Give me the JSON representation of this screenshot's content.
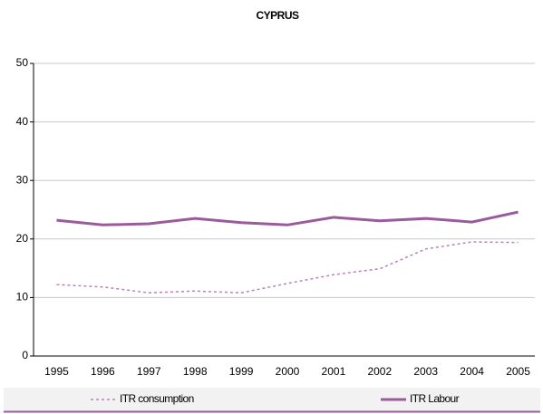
{
  "chart_data": {
    "type": "line",
    "title": "CYPRUS",
    "categories": [
      "1995",
      "1996",
      "1997",
      "1998",
      "1999",
      "2000",
      "2001",
      "2002",
      "2003",
      "2004",
      "2005"
    ],
    "series": [
      {
        "name": "ITR consumption",
        "color": "#b584b5",
        "dash": "dotted",
        "values": [
          12.2,
          11.8,
          10.8,
          11.1,
          10.8,
          12.4,
          13.9,
          14.9,
          18.3,
          19.5,
          19.4
        ]
      },
      {
        "name": "ITR Labour",
        "color": "#9b5a9b",
        "dash": "solid",
        "values": [
          23.2,
          22.4,
          22.6,
          23.5,
          22.8,
          22.4,
          23.7,
          23.1,
          23.5,
          22.9,
          24.6
        ]
      }
    ],
    "ylim": [
      0,
      50
    ],
    "yticks": [
      0,
      10,
      20,
      30,
      40,
      50
    ],
    "grid": true,
    "legend": "bottom"
  }
}
